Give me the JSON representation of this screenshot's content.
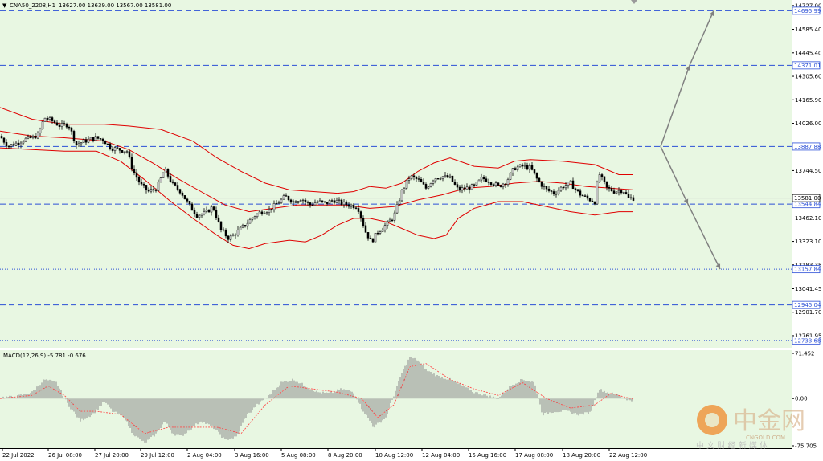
{
  "chart_header": {
    "symbol": "CNA50_2208,H1",
    "ohlc": "13627.00 13639.00 13567.00 13581.00"
  },
  "macd_header": "MACD(12,26,9) -5.781 -0.676",
  "colors": {
    "background": "#e8f7e2",
    "candle": "#000000",
    "bollinger": "#e00000",
    "hline": "#2b4fd6",
    "arrow": "#808080",
    "macd_hist": "#8a8a8a",
    "macd_signal": "#ff4a4a"
  },
  "watermark": {
    "brand": "中金网",
    "domain": "CNGOLD.COM",
    "slogan": "中 文 财 经 新 媒 体"
  },
  "chart_data": {
    "type": "candlestick",
    "title": "CNA50_2208,H1",
    "ylim": [
      12690,
      14760
    ],
    "macd_ylim": [
      -78,
      76
    ],
    "price_ticks": [
      14727.0,
      14585.4,
      14445.4,
      14305.6,
      14165.9,
      14026.0,
      13744.5,
      13462.1,
      13323.1,
      13183.35,
      13041.45,
      12901.7,
      12761.95
    ],
    "price_tick_labels": [
      "14727.00",
      "14585.40",
      "14445.40",
      "14305.60",
      "14165.90",
      "14026.00",
      "13744.50",
      "13462.10",
      "13323.10",
      "13183.35",
      "13041.45",
      "12901.70",
      "12761.95"
    ],
    "macd_ticks": [
      71.452,
      0.0,
      -75.705
    ],
    "macd_tick_labels": [
      "71.452",
      "0.00",
      "-75.705"
    ],
    "x_labels": [
      "22 Jul 2022",
      "26 Jul 08:00",
      "27 Jul 20:00",
      "29 Jul 12:00",
      "2 Aug 04:00",
      "3 Aug 16:00",
      "5 Aug 08:00",
      "8 Aug 20:00",
      "10 Aug 12:00",
      "12 Aug 04:00",
      "15 Aug 16:00",
      "17 Aug 08:00",
      "18 Aug 20:00",
      "22 Aug 12:00"
    ],
    "horizontal_levels": [
      {
        "value": 14695.99,
        "label": "14695.99",
        "style": "dashed"
      },
      {
        "value": 14371.01,
        "label": "14371.01",
        "style": "dashed"
      },
      {
        "value": 13887.88,
        "label": "13887.88",
        "style": "dashed"
      },
      {
        "value": 13544.84,
        "label": "13544.84",
        "style": "dashed"
      },
      {
        "value": 13157.84,
        "label": "13157.84",
        "style": "dotted"
      },
      {
        "value": 12945.04,
        "label": "12945.04",
        "style": "dashed"
      },
      {
        "value": 12733.68,
        "label": "12733.68",
        "style": "dotted"
      }
    ],
    "current_price": {
      "value": 13581.0,
      "label": "13581.00"
    },
    "close_path": [
      [
        0,
        13950
      ],
      [
        10,
        13890
      ],
      [
        22,
        13910
      ],
      [
        30,
        13930
      ],
      [
        40,
        13940
      ],
      [
        48,
        13960
      ],
      [
        55,
        14060
      ],
      [
        65,
        14040
      ],
      [
        75,
        14010
      ],
      [
        85,
        14020
      ],
      [
        95,
        13900
      ],
      [
        105,
        13920
      ],
      [
        118,
        13940
      ],
      [
        128,
        13930
      ],
      [
        138,
        13880
      ],
      [
        148,
        13870
      ],
      [
        158,
        13860
      ],
      [
        165,
        13750
      ],
      [
        175,
        13660
      ],
      [
        185,
        13620
      ],
      [
        195,
        13640
      ],
      [
        205,
        13750
      ],
      [
        215,
        13660
      ],
      [
        225,
        13620
      ],
      [
        235,
        13540
      ],
      [
        245,
        13480
      ],
      [
        255,
        13490
      ],
      [
        265,
        13530
      ],
      [
        275,
        13390
      ],
      [
        285,
        13340
      ],
      [
        295,
        13380
      ],
      [
        305,
        13420
      ],
      [
        315,
        13470
      ],
      [
        325,
        13500
      ],
      [
        335,
        13510
      ],
      [
        345,
        13550
      ],
      [
        355,
        13590
      ],
      [
        365,
        13560
      ],
      [
        375,
        13580
      ],
      [
        385,
        13540
      ],
      [
        395,
        13560
      ],
      [
        405,
        13550
      ],
      [
        415,
        13570
      ],
      [
        425,
        13550
      ],
      [
        435,
        13540
      ],
      [
        445,
        13530
      ],
      [
        455,
        13380
      ],
      [
        462,
        13320
      ],
      [
        470,
        13380
      ],
      [
        480,
        13420
      ],
      [
        490,
        13470
      ],
      [
        500,
        13620
      ],
      [
        510,
        13710
      ],
      [
        520,
        13690
      ],
      [
        530,
        13640
      ],
      [
        540,
        13700
      ],
      [
        550,
        13710
      ],
      [
        560,
        13700
      ],
      [
        570,
        13630
      ],
      [
        580,
        13640
      ],
      [
        590,
        13650
      ],
      [
        600,
        13700
      ],
      [
        610,
        13680
      ],
      [
        620,
        13650
      ],
      [
        630,
        13680
      ],
      [
        640,
        13760
      ],
      [
        650,
        13770
      ],
      [
        660,
        13760
      ],
      [
        670,
        13680
      ],
      [
        680,
        13630
      ],
      [
        690,
        13610
      ],
      [
        700,
        13650
      ],
      [
        710,
        13670
      ],
      [
        720,
        13610
      ],
      [
        730,
        13580
      ],
      [
        740,
        13560
      ],
      [
        745,
        13730
      ],
      [
        755,
        13640
      ],
      [
        765,
        13620
      ],
      [
        775,
        13630
      ],
      [
        782,
        13580
      ],
      [
        788,
        13581
      ]
    ],
    "bollinger_upper": [
      [
        0,
        14120
      ],
      [
        40,
        14050
      ],
      [
        80,
        14020
      ],
      [
        130,
        14020
      ],
      [
        160,
        14010
      ],
      [
        200,
        13990
      ],
      [
        240,
        13920
      ],
      [
        270,
        13820
      ],
      [
        300,
        13740
      ],
      [
        330,
        13670
      ],
      [
        360,
        13630
      ],
      [
        390,
        13620
      ],
      [
        420,
        13610
      ],
      [
        440,
        13620
      ],
      [
        460,
        13650
      ],
      [
        480,
        13640
      ],
      [
        500,
        13670
      ],
      [
        520,
        13740
      ],
      [
        540,
        13790
      ],
      [
        560,
        13820
      ],
      [
        590,
        13770
      ],
      [
        620,
        13760
      ],
      [
        640,
        13800
      ],
      [
        660,
        13810
      ],
      [
        700,
        13800
      ],
      [
        740,
        13780
      ],
      [
        770,
        13720
      ],
      [
        788,
        13720
      ]
    ],
    "bollinger_middle": [
      [
        0,
        13980
      ],
      [
        40,
        13950
      ],
      [
        80,
        13940
      ],
      [
        130,
        13920
      ],
      [
        160,
        13870
      ],
      [
        190,
        13790
      ],
      [
        220,
        13700
      ],
      [
        250,
        13620
      ],
      [
        280,
        13540
      ],
      [
        310,
        13500
      ],
      [
        340,
        13520
      ],
      [
        370,
        13540
      ],
      [
        400,
        13540
      ],
      [
        430,
        13540
      ],
      [
        460,
        13520
      ],
      [
        490,
        13530
      ],
      [
        520,
        13570
      ],
      [
        550,
        13600
      ],
      [
        580,
        13640
      ],
      [
        610,
        13650
      ],
      [
        640,
        13670
      ],
      [
        670,
        13680
      ],
      [
        700,
        13670
      ],
      [
        730,
        13650
      ],
      [
        760,
        13640
      ],
      [
        788,
        13630
      ]
    ],
    "bollinger_lower": [
      [
        0,
        13880
      ],
      [
        40,
        13870
      ],
      [
        80,
        13860
      ],
      [
        120,
        13860
      ],
      [
        150,
        13800
      ],
      [
        180,
        13690
      ],
      [
        210,
        13570
      ],
      [
        240,
        13460
      ],
      [
        270,
        13360
      ],
      [
        290,
        13300
      ],
      [
        310,
        13280
      ],
      [
        330,
        13310
      ],
      [
        360,
        13330
      ],
      [
        380,
        13320
      ],
      [
        400,
        13360
      ],
      [
        420,
        13420
      ],
      [
        440,
        13460
      ],
      [
        460,
        13460
      ],
      [
        480,
        13440
      ],
      [
        500,
        13400
      ],
      [
        520,
        13360
      ],
      [
        540,
        13340
      ],
      [
        555,
        13360
      ],
      [
        570,
        13460
      ],
      [
        590,
        13520
      ],
      [
        620,
        13560
      ],
      [
        650,
        13560
      ],
      [
        680,
        13530
      ],
      [
        710,
        13500
      ],
      [
        740,
        13480
      ],
      [
        770,
        13500
      ],
      [
        788,
        13500
      ]
    ],
    "projection_arrows": [
      {
        "path": [
          [
            822,
            13887.88
          ],
          [
            858,
            14371.01
          ],
          [
            888,
            14695.99
          ]
        ]
      },
      {
        "path": [
          [
            822,
            13887.88
          ],
          [
            856,
            13544.84
          ],
          [
            896,
            13157.84
          ]
        ]
      }
    ],
    "macd_histogram": [
      [
        0,
        2
      ],
      [
        20,
        3
      ],
      [
        40,
        10
      ],
      [
        55,
        30
      ],
      [
        70,
        25
      ],
      [
        85,
        -10
      ],
      [
        100,
        -35
      ],
      [
        115,
        -25
      ],
      [
        130,
        -5
      ],
      [
        140,
        -20
      ],
      [
        155,
        -30
      ],
      [
        165,
        -55
      ],
      [
        180,
        -70
      ],
      [
        195,
        -55
      ],
      [
        205,
        -35
      ],
      [
        215,
        -55
      ],
      [
        225,
        -60
      ],
      [
        235,
        -50
      ],
      [
        250,
        -35
      ],
      [
        265,
        -45
      ],
      [
        280,
        -65
      ],
      [
        295,
        -60
      ],
      [
        305,
        -30
      ],
      [
        320,
        -10
      ],
      [
        335,
        5
      ],
      [
        350,
        25
      ],
      [
        365,
        30
      ],
      [
        380,
        20
      ],
      [
        395,
        10
      ],
      [
        410,
        8
      ],
      [
        425,
        15
      ],
      [
        440,
        10
      ],
      [
        450,
        -15
      ],
      [
        465,
        -45
      ],
      [
        480,
        -30
      ],
      [
        490,
        5
      ],
      [
        500,
        40
      ],
      [
        510,
        65
      ],
      [
        520,
        60
      ],
      [
        530,
        45
      ],
      [
        545,
        35
      ],
      [
        560,
        30
      ],
      [
        575,
        20
      ],
      [
        590,
        10
      ],
      [
        605,
        5
      ],
      [
        620,
        0
      ],
      [
        635,
        20
      ],
      [
        650,
        30
      ],
      [
        665,
        25
      ],
      [
        675,
        -25
      ],
      [
        690,
        -20
      ],
      [
        705,
        -20
      ],
      [
        720,
        -25
      ],
      [
        735,
        -22
      ],
      [
        745,
        15
      ],
      [
        755,
        10
      ],
      [
        770,
        5
      ],
      [
        785,
        -4
      ]
    ],
    "macd_signal": [
      [
        0,
        0
      ],
      [
        40,
        5
      ],
      [
        60,
        20
      ],
      [
        80,
        5
      ],
      [
        100,
        -20
      ],
      [
        120,
        -20
      ],
      [
        150,
        -25
      ],
      [
        180,
        -55
      ],
      [
        210,
        -45
      ],
      [
        240,
        -45
      ],
      [
        270,
        -45
      ],
      [
        300,
        -55
      ],
      [
        330,
        -10
      ],
      [
        360,
        20
      ],
      [
        390,
        15
      ],
      [
        420,
        10
      ],
      [
        450,
        0
      ],
      [
        470,
        -30
      ],
      [
        490,
        -10
      ],
      [
        510,
        50
      ],
      [
        530,
        55
      ],
      [
        560,
        30
      ],
      [
        590,
        15
      ],
      [
        620,
        5
      ],
      [
        650,
        25
      ],
      [
        680,
        0
      ],
      [
        710,
        -15
      ],
      [
        740,
        -10
      ],
      [
        760,
        8
      ],
      [
        788,
        -1
      ]
    ],
    "xlabel": "",
    "ylabel": "",
    "grid": false
  }
}
